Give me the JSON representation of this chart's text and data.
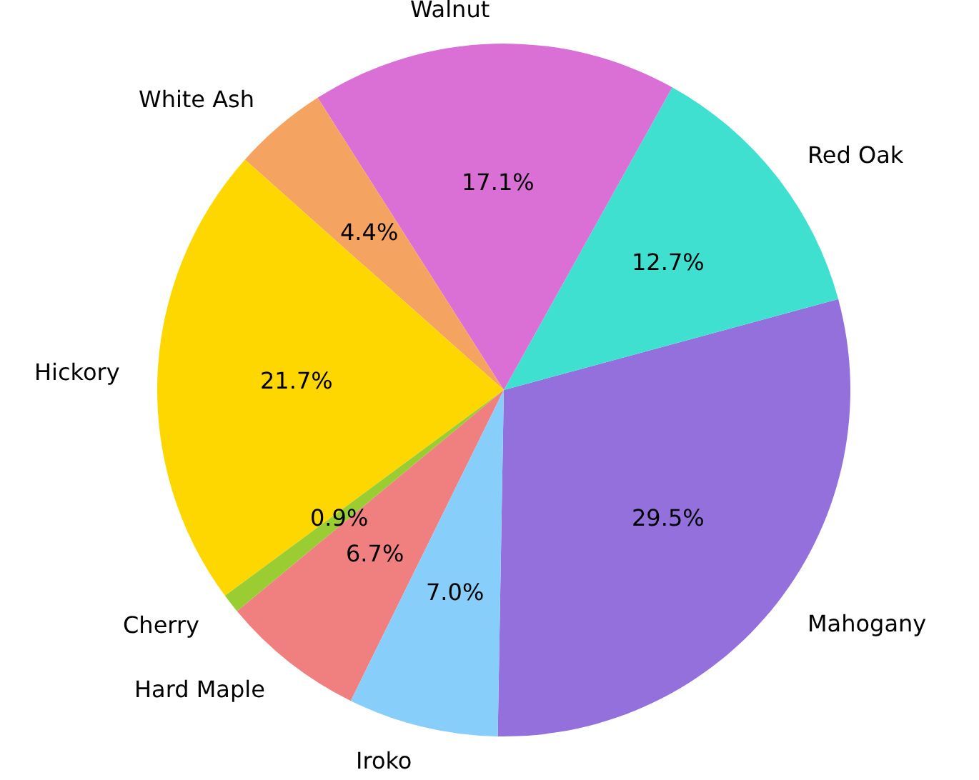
{
  "chart_data": {
    "type": "pie",
    "categories": [
      "Mahogany",
      "Red Oak",
      "Walnut",
      "White Ash",
      "Hickory",
      "Cherry",
      "Hard Maple",
      "Iroko"
    ],
    "values": [
      29.5,
      12.7,
      17.1,
      4.4,
      21.7,
      0.9,
      6.7,
      7.0
    ],
    "value_labels": [
      "29.5%",
      "12.7%",
      "17.1%",
      "4.4%",
      "21.7%",
      "0.9%",
      "6.7%",
      "7.0%"
    ],
    "colors": [
      "#9370db",
      "#40e0d0",
      "#da70d6",
      "#f4a460",
      "#ffd700",
      "#9acd32",
      "#f08080",
      "#87cefa"
    ],
    "legend": false
  }
}
